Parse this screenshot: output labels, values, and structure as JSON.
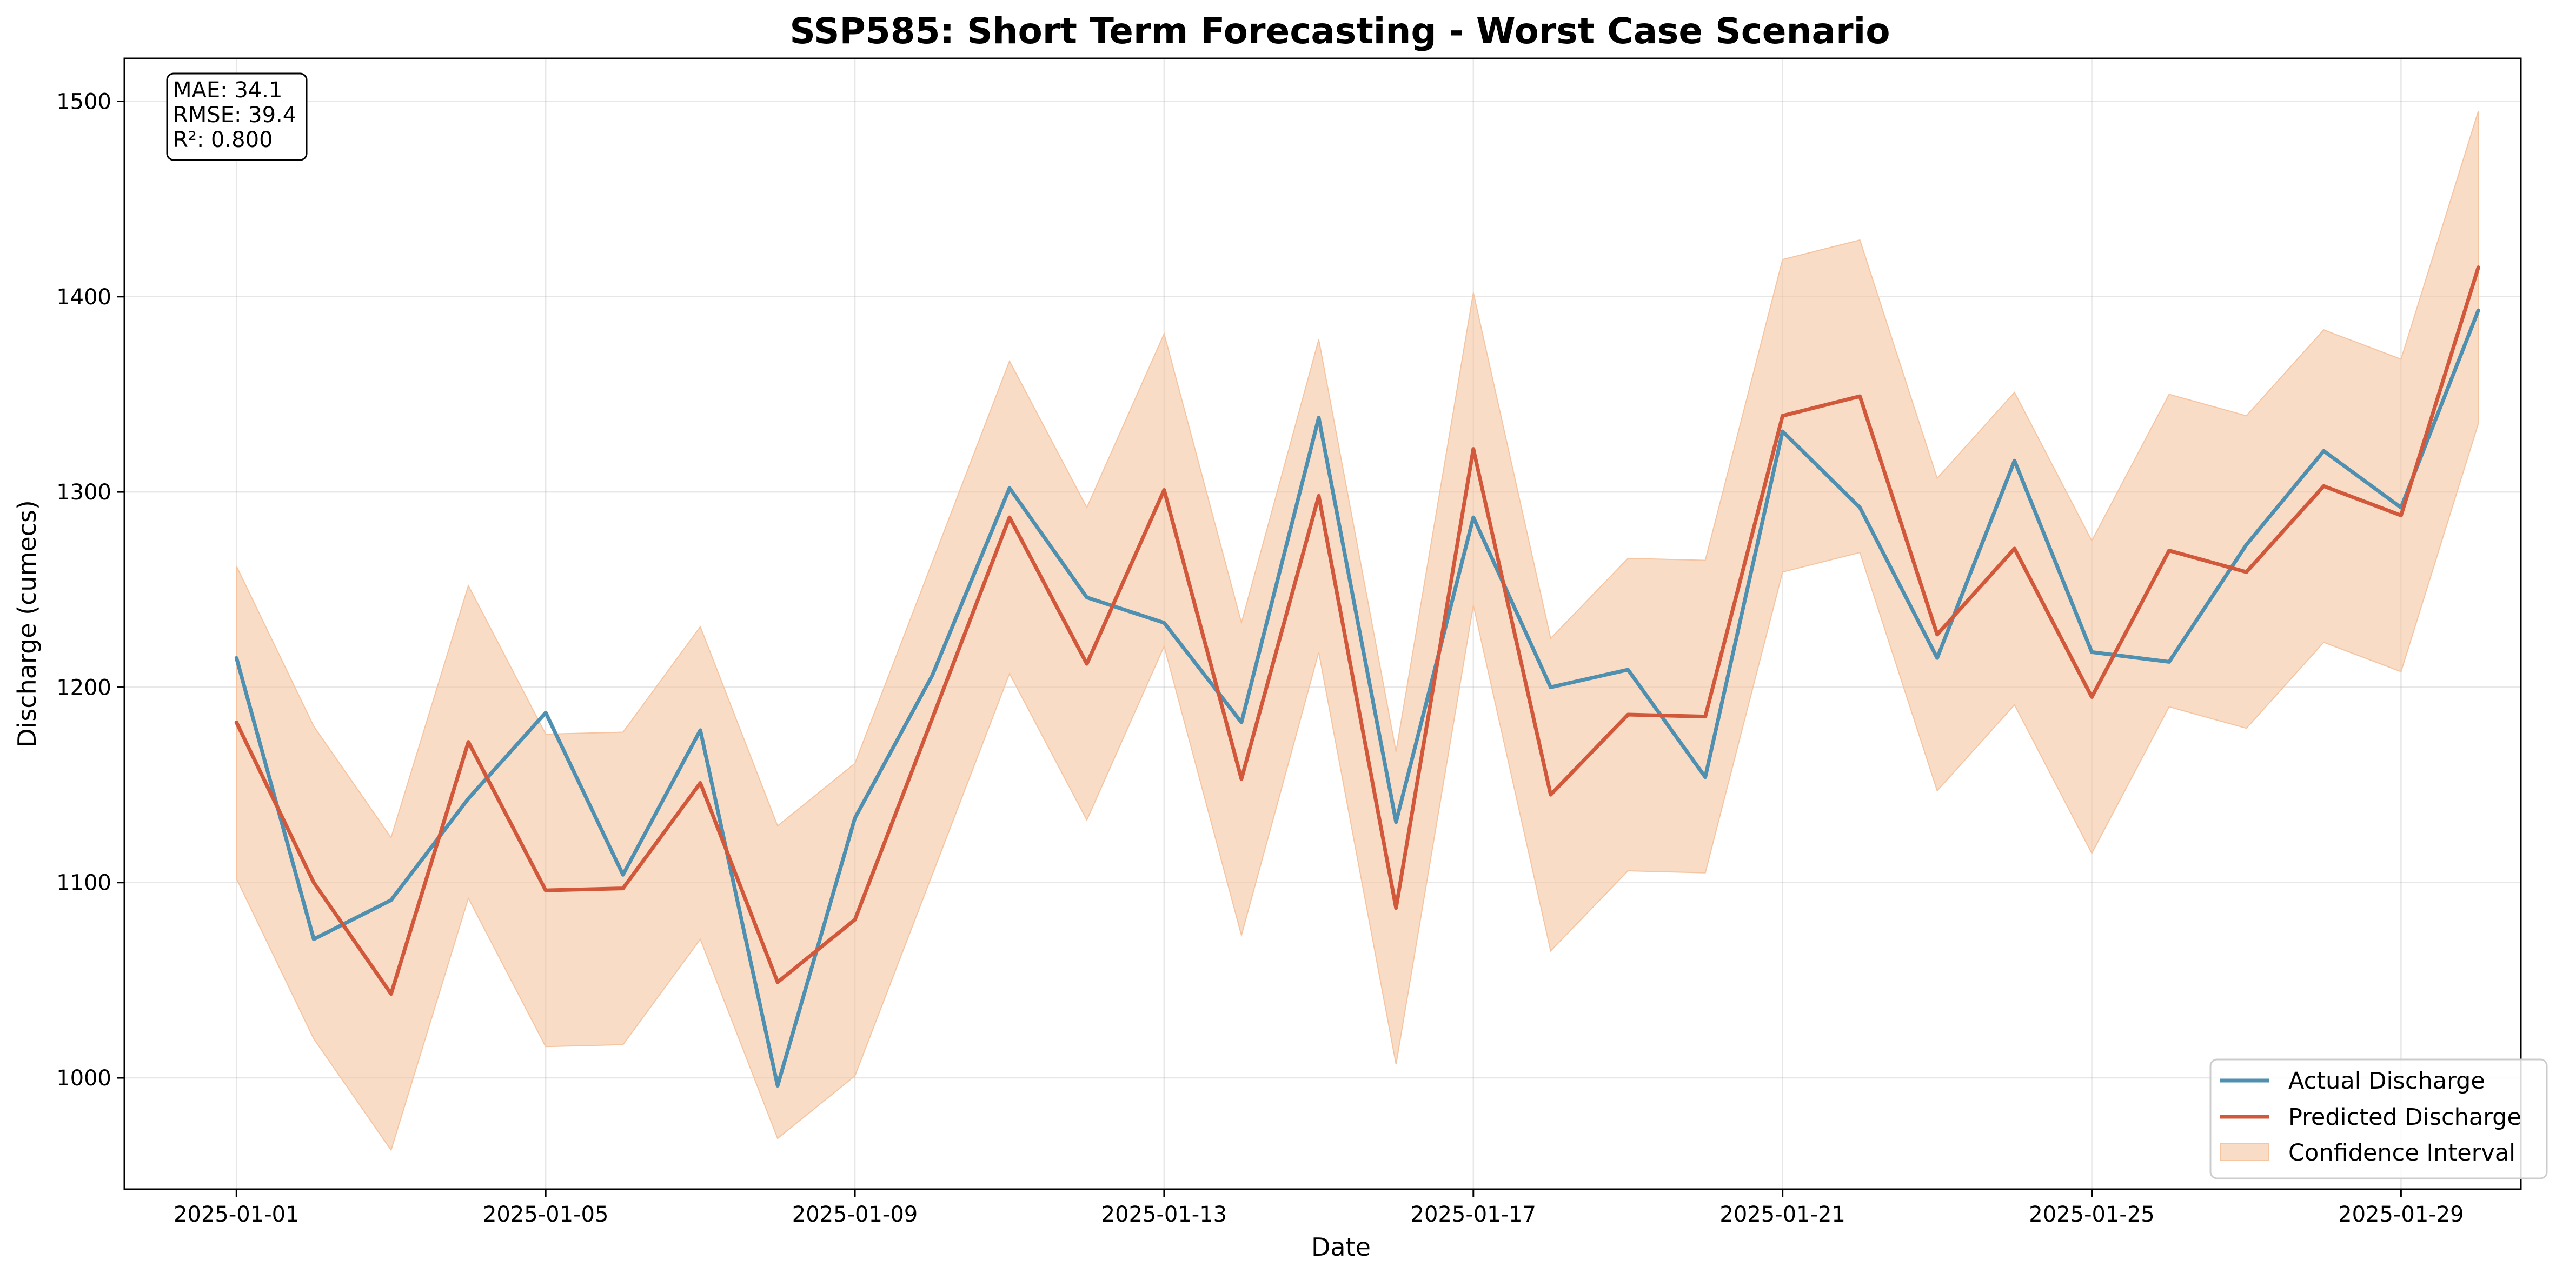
{
  "chart_data": {
    "type": "line",
    "title": "SSP585: Short Term Forecasting - Worst Case Scenario",
    "xlabel": "Date",
    "ylabel": "Discharge (cumecs)",
    "x": [
      "2025-01-01",
      "2025-01-02",
      "2025-01-03",
      "2025-01-04",
      "2025-01-05",
      "2025-01-06",
      "2025-01-07",
      "2025-01-08",
      "2025-01-09",
      "2025-01-10",
      "2025-01-11",
      "2025-01-12",
      "2025-01-13",
      "2025-01-14",
      "2025-01-15",
      "2025-01-16",
      "2025-01-17",
      "2025-01-18",
      "2025-01-19",
      "2025-01-20",
      "2025-01-21",
      "2025-01-22",
      "2025-01-23",
      "2025-01-24",
      "2025-01-25",
      "2025-01-26",
      "2025-01-27",
      "2025-01-28",
      "2025-01-29",
      "2025-01-30"
    ],
    "xticks": [
      "2025-01-01",
      "2025-01-05",
      "2025-01-09",
      "2025-01-13",
      "2025-01-17",
      "2025-01-21",
      "2025-01-25",
      "2025-01-29"
    ],
    "yticks": [
      1000,
      1100,
      1200,
      1300,
      1400,
      1500
    ],
    "ylim": [
      943,
      1522
    ],
    "xlim": [
      "2024-12-30.55",
      "2025-01-30.55"
    ],
    "grid": true,
    "legend_position": "lower-right",
    "series": [
      {
        "name": "Actual Discharge",
        "color": "#4f8faf",
        "values": [
          1215,
          1071,
          1091,
          1143,
          1187,
          1104,
          1178,
          996,
          1133,
          1206,
          1302,
          1246,
          1233,
          1182,
          1338,
          1131,
          1287,
          1200,
          1209,
          1154,
          1331,
          1292,
          1215,
          1316,
          1218,
          1213,
          1273,
          1321,
          1292,
          1393
        ]
      },
      {
        "name": "Predicted Discharge",
        "color": "#d1583a",
        "values": [
          1182,
          1100,
          1043,
          1172,
          1096,
          1097,
          1151,
          1049,
          1081,
          1184,
          1287,
          1212,
          1301,
          1153,
          1298,
          1087,
          1322,
          1145,
          1186,
          1185,
          1339,
          1349,
          1227,
          1271,
          1195,
          1270,
          1259,
          1303,
          1288,
          1415
        ]
      }
    ],
    "confidence_interval": {
      "name": "Confidence Interval",
      "color": "#f5c4a0",
      "upper": [
        1262,
        1180,
        1123,
        1252,
        1176,
        1177,
        1231,
        1129,
        1161,
        1264,
        1367,
        1292,
        1381,
        1233,
        1378,
        1167,
        1402,
        1225,
        1266,
        1265,
        1419,
        1429,
        1307,
        1351,
        1275,
        1350,
        1339,
        1383,
        1368,
        1495
      ],
      "lower": [
        1102,
        1020,
        963,
        1092,
        1016,
        1017,
        1071,
        969,
        1001,
        1104,
        1207,
        1132,
        1221,
        1073,
        1218,
        1007,
        1242,
        1065,
        1106,
        1105,
        1259,
        1269,
        1147,
        1191,
        1115,
        1190,
        1179,
        1223,
        1208,
        1335
      ]
    },
    "metrics": {
      "mae": "MAE: 34.1",
      "rmse": "RMSE: 39.4",
      "r2": "R²: 0.800"
    }
  }
}
